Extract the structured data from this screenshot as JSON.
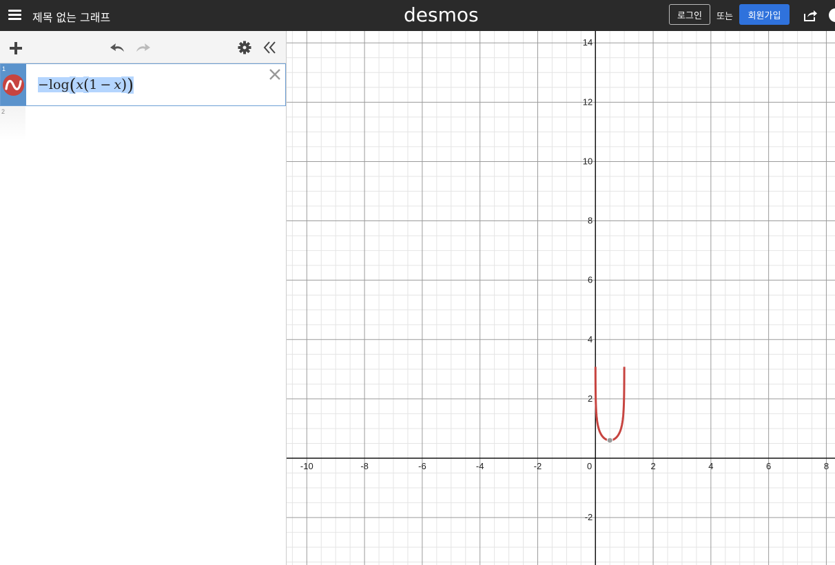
{
  "header": {
    "menu_icon": "hamburger-menu-icon",
    "graph_title": "제목 없는 그래프",
    "logo": "desmos",
    "login_label": "로그인",
    "or_label": "또는",
    "signup_label": "회원가입",
    "share_icon": "share-icon",
    "help_icon": "help-icon"
  },
  "toolbar": {
    "add_icon": "plus-icon",
    "undo_icon": "undo-icon",
    "redo_icon": "redo-icon",
    "settings_icon": "gear-icon",
    "collapse_icon": "double-chevron-left-icon"
  },
  "expressions": [
    {
      "index": "1",
      "color": "#c74440",
      "latex_parts": {
        "minus": "−",
        "fn": "log",
        "lparen": "(",
        "var1": "x",
        "inner_lparen": "(",
        "one": "1",
        "op": "−",
        "var2": "x",
        "inner_rparen": ")",
        "rparen": ")"
      }
    },
    {
      "index": "2"
    }
  ],
  "graph": {
    "x_range": [
      -10.7,
      8.3
    ],
    "y_range": [
      -3.6,
      14.4
    ],
    "x_ticks": [
      -10,
      -8,
      -6,
      -4,
      -2,
      2,
      4,
      6,
      8
    ],
    "y_ticks": [
      -2,
      2,
      4,
      6,
      8,
      10,
      12,
      14
    ],
    "origin_label": "0",
    "grid_major": 2,
    "grid_minor": 0.5,
    "curve_color": "#c74440",
    "minimum_point": {
      "x": 0.5,
      "y": 0.602
    }
  }
}
